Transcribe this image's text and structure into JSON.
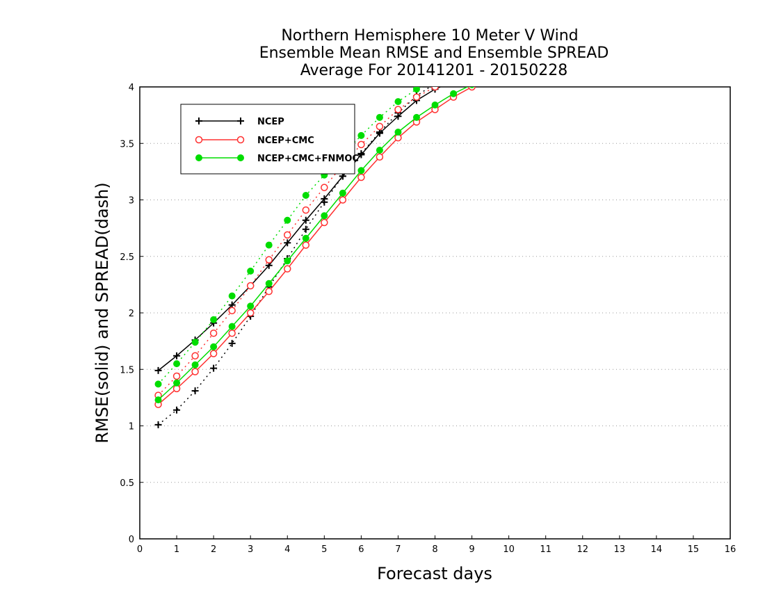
{
  "chart_data": {
    "type": "line",
    "title": [
      "Northern Hemisphere 10 Meter V Wind",
      "Ensemble Mean RMSE and Ensemble SPREAD",
      "Average For 20141201 - 20150228"
    ],
    "xlabel": "Forecast days",
    "ylabel": "RMSE(solid) and SPREAD(dash)",
    "xlim": [
      0,
      16
    ],
    "ylim": [
      0,
      4
    ],
    "x_ticks": [
      "0",
      "1",
      "2",
      "3",
      "4",
      "5",
      "6",
      "7",
      "8",
      "9",
      "10",
      "11",
      "12",
      "13",
      "14",
      "15",
      "16"
    ],
    "y_ticks": [
      "0",
      "0.5",
      "1",
      "1.5",
      "2",
      "2.5",
      "3",
      "3.5",
      "4"
    ],
    "grid": "horizontal dotted",
    "legend_position": "top-left",
    "x": [
      0.5,
      1,
      1.5,
      2,
      2.5,
      3,
      3.5,
      4,
      4.5,
      5,
      5.5,
      6,
      6.5,
      7,
      7.5,
      8,
      8.5,
      9
    ],
    "series": [
      {
        "name": "NCEP",
        "color": "#000000",
        "marker": "plus",
        "rmse": [
          1.49,
          1.62,
          1.76,
          1.91,
          2.07,
          2.24,
          2.42,
          2.62,
          2.82,
          3.01,
          3.21,
          3.4,
          3.59,
          3.74,
          3.88,
          3.98,
          4.05,
          4.1
        ],
        "spread": [
          1.01,
          1.14,
          1.31,
          1.51,
          1.73,
          1.97,
          2.23,
          2.48,
          2.74,
          2.98,
          3.21,
          3.41,
          3.6,
          3.77,
          3.92,
          4.03,
          4.1,
          4.15
        ]
      },
      {
        "name": "NCEP+CMC",
        "color": "#ff3030",
        "marker": "open-circle",
        "rmse": [
          1.19,
          1.33,
          1.48,
          1.64,
          1.82,
          2.0,
          2.19,
          2.39,
          2.6,
          2.8,
          3.0,
          3.2,
          3.38,
          3.55,
          3.69,
          3.8,
          3.91,
          4.0
        ],
        "spread": [
          1.27,
          1.44,
          1.62,
          1.82,
          2.02,
          2.24,
          2.47,
          2.69,
          2.91,
          3.11,
          3.31,
          3.49,
          3.65,
          3.8,
          3.91,
          4.0,
          4.06,
          4.1
        ]
      },
      {
        "name": "NCEP+CMC+FNMOC",
        "color": "#00dd00",
        "marker": "filled-circle",
        "rmse": [
          1.23,
          1.38,
          1.54,
          1.7,
          1.88,
          2.06,
          2.26,
          2.46,
          2.66,
          2.86,
          3.06,
          3.26,
          3.44,
          3.6,
          3.73,
          3.84,
          3.94,
          4.02
        ],
        "spread": [
          1.37,
          1.55,
          1.74,
          1.94,
          2.15,
          2.37,
          2.6,
          2.82,
          3.04,
          3.22,
          3.4,
          3.57,
          3.73,
          3.87,
          3.98,
          4.06,
          4.12,
          4.16
        ]
      }
    ]
  }
}
